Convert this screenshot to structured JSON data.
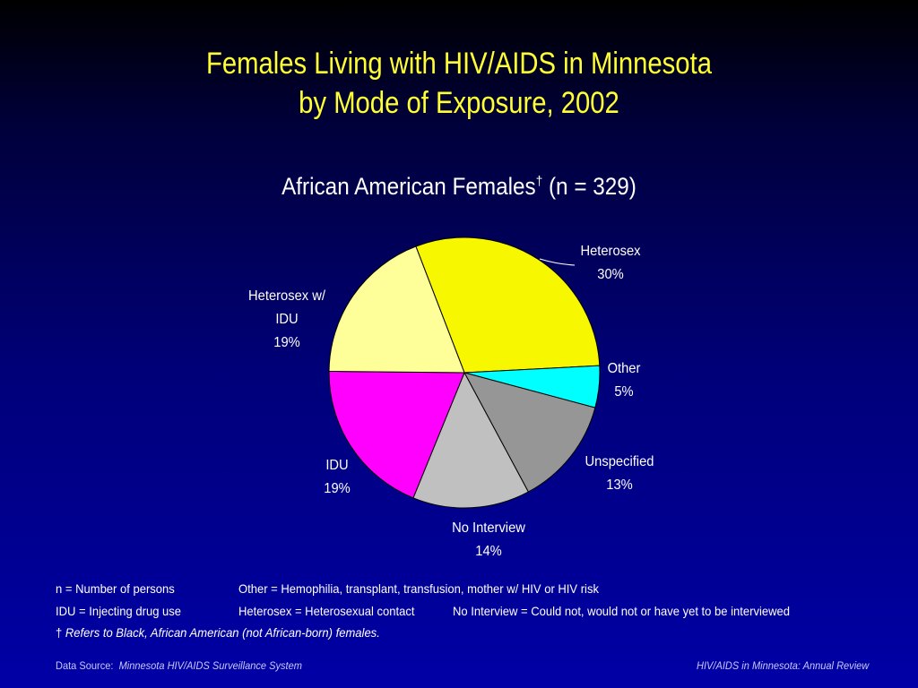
{
  "title": {
    "line1": "Females Living with HIV/AIDS in Minnesota",
    "line2": "by Mode of Exposure, 2002"
  },
  "subtitle": {
    "text_before": "African American Females",
    "dagger": "†",
    "text_after": " (n = 329)"
  },
  "chart_data": {
    "type": "pie",
    "title": "African American Females† (n = 329)",
    "slices": [
      {
        "name": "Heterosex",
        "value": 30,
        "label": "30%",
        "color": "#f7f700"
      },
      {
        "name": "Other",
        "value": 5,
        "label": "5%",
        "color": "#00ffff"
      },
      {
        "name": "Unspecified",
        "value": 13,
        "label": "13%",
        "color": "#969696"
      },
      {
        "name": "No Interview",
        "value": 14,
        "label": "14%",
        "color": "#c0c0c0"
      },
      {
        "name": "IDU",
        "value": 19,
        "label": "19%",
        "color": "#ff00ff"
      },
      {
        "name": "Heterosex w/ IDU",
        "value": 19,
        "label": "19%",
        "color": "#ffff99"
      }
    ]
  },
  "labels": {
    "heterosex": {
      "name": "Heterosex",
      "pct": "30%"
    },
    "other": {
      "name": "Other",
      "pct": "5%"
    },
    "unspecified": {
      "name": "Unspecified",
      "pct": "13%"
    },
    "no_interview": {
      "name": "No Interview",
      "pct": "14%"
    },
    "idu": {
      "name": "IDU",
      "pct": "19%"
    },
    "hetero_idu": {
      "name_line1": "Heterosex w/",
      "name_line2": "IDU",
      "pct": "19%"
    }
  },
  "footnotes": {
    "n_def": "n = Number of persons",
    "other_def": "Other = Hemophilia, transplant, transfusion, mother w/ HIV or HIV risk",
    "idu_def": "IDU = Injecting drug use",
    "hetero_def": "Heterosex = Heterosexual contact",
    "no_interview_def": "No Interview = Could not, would not or have yet to be interviewed",
    "dagger": "†",
    "dagger_note": "Refers to Black, African American (not African-born) females."
  },
  "source": {
    "prefix": "Data Source:",
    "name": "Minnesota HIV/AIDS Surveillance System",
    "right": "HIV/AIDS in Minnesota: Annual Review"
  }
}
